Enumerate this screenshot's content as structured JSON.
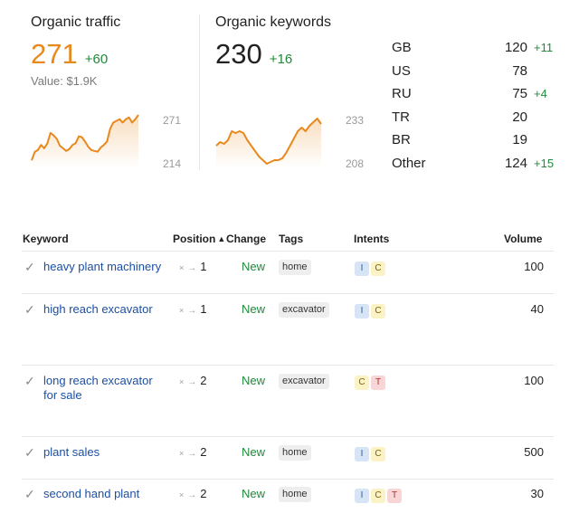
{
  "organic_traffic": {
    "title": "Organic traffic",
    "value": "271",
    "delta": "+60",
    "sub": "Value: $1.9K",
    "axis_max": "271",
    "axis_min": "214",
    "color": "#e8891d",
    "series": [
      218,
      228,
      230,
      236,
      232,
      238,
      250,
      247,
      243,
      235,
      232,
      229,
      231,
      236,
      238,
      246,
      245,
      240,
      234,
      230,
      229,
      228,
      233,
      236,
      240,
      255,
      262,
      264,
      266,
      262,
      266,
      268,
      262,
      266,
      271
    ]
  },
  "organic_keywords": {
    "title": "Organic keywords",
    "value": "230",
    "delta": "+16",
    "axis_max": "233",
    "axis_min": "208",
    "color": "#e8891d",
    "series": [
      218,
      220,
      219,
      221,
      226,
      225,
      226,
      225,
      221,
      218,
      215,
      212,
      210,
      208,
      209,
      210,
      210,
      211,
      214,
      218,
      222,
      226,
      228,
      226,
      229,
      231,
      233,
      230
    ]
  },
  "countries": [
    {
      "code": "GB",
      "value": "120",
      "delta": "+11"
    },
    {
      "code": "US",
      "value": "78",
      "delta": ""
    },
    {
      "code": "RU",
      "value": "75",
      "delta": "+4"
    },
    {
      "code": "TR",
      "value": "20",
      "delta": ""
    },
    {
      "code": "BR",
      "value": "19",
      "delta": ""
    },
    {
      "code": "Other",
      "value": "124",
      "delta": "+15"
    }
  ],
  "table": {
    "headers": {
      "keyword": "Keyword",
      "position": "Position",
      "change": "Change",
      "tags": "Tags",
      "intents": "Intents",
      "volume": "Volume"
    },
    "rows": [
      {
        "keyword": "heavy plant machinery",
        "from": "×",
        "to": "1",
        "change": "New",
        "tag": "home",
        "intents": [
          "I",
          "C"
        ],
        "volume": "100"
      },
      {
        "keyword": "high reach excavator",
        "from": "×",
        "to": "1",
        "change": "New",
        "tag": "excavator",
        "intents": [
          "I",
          "C"
        ],
        "volume": "40"
      },
      {
        "keyword": "long reach excavator for sale",
        "from": "×",
        "to": "2",
        "change": "New",
        "tag": "excavator",
        "intents": [
          "C",
          "T"
        ],
        "volume": "100"
      },
      {
        "keyword": "plant sales",
        "from": "×",
        "to": "2",
        "change": "New",
        "tag": "home",
        "intents": [
          "I",
          "C"
        ],
        "volume": "500"
      },
      {
        "keyword": "second hand plant",
        "from": "×",
        "to": "2",
        "change": "New",
        "tag": "home",
        "intents": [
          "I",
          "C",
          "T"
        ],
        "volume": "30"
      }
    ]
  }
}
